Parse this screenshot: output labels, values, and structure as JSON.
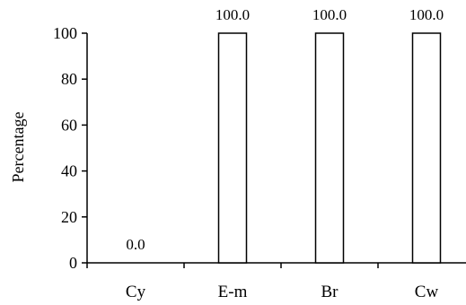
{
  "chart_data": {
    "type": "bar",
    "categories": [
      "Cy",
      "E-m",
      "Br",
      "Cw"
    ],
    "values": [
      0.0,
      100.0,
      100.0,
      100.0
    ],
    "data_labels": [
      "0.0",
      "100.0",
      "100.0",
      "100.0"
    ],
    "title": "",
    "xlabel": "",
    "ylabel": "Percentage",
    "ylim": [
      0,
      100
    ],
    "yticks": [
      0,
      20,
      40,
      60,
      80,
      100
    ],
    "ytick_labels": [
      "0",
      "20",
      "40",
      "60",
      "80",
      "100"
    ],
    "grid": false,
    "legend": "none",
    "bar_fill": "#ffffff",
    "bar_stroke": "#000000"
  }
}
